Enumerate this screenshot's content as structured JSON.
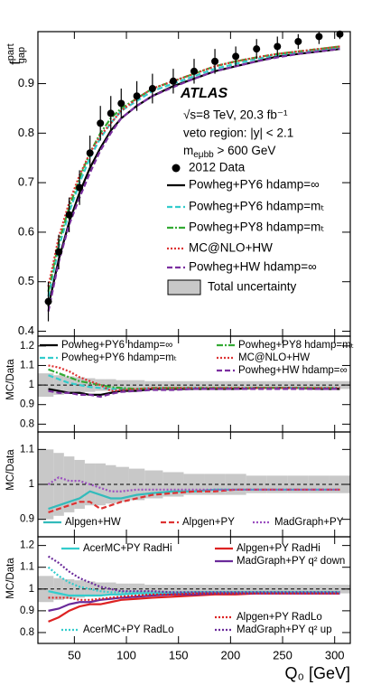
{
  "chart_data": [
    {
      "type": "line",
      "ylabel": {
        "main": "f",
        "sup": "part",
        "sub": "gap"
      },
      "x": [
        25,
        35,
        45,
        55,
        65,
        75,
        85,
        95,
        110,
        125,
        145,
        165,
        185,
        205,
        225,
        245,
        265,
        285,
        305
      ],
      "xlim": [
        15,
        315
      ],
      "xticks": [
        50,
        100,
        150,
        200,
        250,
        300
      ],
      "ylim": [
        0.39,
        1.005
      ],
      "yticks": [
        0.4,
        0.5,
        0.6,
        0.7,
        0.8,
        0.9
      ],
      "annotations": {
        "experiment": "ATLAS",
        "energy": "√s=8 TeV, 20.3 fb⁻¹",
        "region": "veto region: |y| < 2.1",
        "mass": {
          "main": "m",
          "sub": "eμbb",
          "rest": " > 600 GeV"
        }
      },
      "data": {
        "name": "2012 Data",
        "color": "#000000",
        "values": [
          0.46,
          0.56,
          0.635,
          0.69,
          0.76,
          0.82,
          0.84,
          0.86,
          0.875,
          0.89,
          0.905,
          0.925,
          0.945,
          0.955,
          0.97,
          0.975,
          0.985,
          0.995,
          1.0
        ],
        "errors": [
          0.04,
          0.035,
          0.035,
          0.035,
          0.035,
          0.035,
          0.035,
          0.03,
          0.03,
          0.03,
          0.025,
          0.025,
          0.025,
          0.02,
          0.02,
          0.02,
          0.015,
          0.015,
          0.01
        ]
      },
      "series": [
        {
          "name": "Powheg+PY6 hdamp=∞",
          "color": "#000000",
          "style": "solid",
          "values": [
            0.45,
            0.545,
            0.62,
            0.68,
            0.73,
            0.77,
            0.805,
            0.83,
            0.855,
            0.875,
            0.895,
            0.91,
            0.925,
            0.935,
            0.945,
            0.955,
            0.96,
            0.965,
            0.97
          ]
        },
        {
          "name": "Powheg+PY6 hdamp=mₜ",
          "color": "#33cccc",
          "style": "dashed",
          "values": [
            0.47,
            0.57,
            0.64,
            0.7,
            0.75,
            0.79,
            0.82,
            0.845,
            0.865,
            0.885,
            0.9,
            0.915,
            0.93,
            0.94,
            0.95,
            0.958,
            0.963,
            0.968,
            0.972
          ]
        },
        {
          "name": "Powheg+PY8 hdamp=mₜ",
          "color": "#33aa33",
          "style": "dashdot",
          "values": [
            0.48,
            0.58,
            0.65,
            0.71,
            0.76,
            0.8,
            0.83,
            0.85,
            0.87,
            0.89,
            0.905,
            0.92,
            0.935,
            0.945,
            0.953,
            0.96,
            0.965,
            0.97,
            0.975
          ]
        },
        {
          "name": "MC@NLO+HW",
          "color": "#dd3333",
          "style": "dotted",
          "values": [
            0.49,
            0.59,
            0.66,
            0.715,
            0.76,
            0.795,
            0.82,
            0.845,
            0.87,
            0.89,
            0.905,
            0.92,
            0.935,
            0.945,
            0.953,
            0.96,
            0.965,
            0.97,
            0.975
          ]
        },
        {
          "name": "Powheg+HW hdamp=∞",
          "color": "#7b2fa0",
          "style": "dashed",
          "values": [
            0.44,
            0.54,
            0.615,
            0.67,
            0.72,
            0.765,
            0.8,
            0.83,
            0.855,
            0.875,
            0.893,
            0.91,
            0.925,
            0.935,
            0.945,
            0.953,
            0.96,
            0.965,
            0.97
          ]
        }
      ],
      "band": {
        "name": "Total uncertainty",
        "color": "#c8c8c8"
      }
    },
    {
      "type": "ratio",
      "ylabel": "MC/Data",
      "x": [
        25,
        35,
        45,
        55,
        65,
        75,
        85,
        95,
        110,
        125,
        145,
        165,
        185,
        205,
        225,
        245,
        265,
        285,
        305
      ],
      "xlim": [
        15,
        315
      ],
      "xticks": [
        50,
        100,
        150,
        200,
        250,
        300
      ],
      "ylim": [
        0.76,
        1.25
      ],
      "yticks": [
        0.8,
        0.9,
        1,
        1.1,
        1.2
      ],
      "reference": 1,
      "band": {
        "color": "#c8c8c8",
        "values": [
          0.06,
          0.05,
          0.045,
          0.04,
          0.035,
          0.03,
          0.03,
          0.025,
          0.025,
          0.02,
          0.02,
          0.02,
          0.02,
          0.02,
          0.02,
          0.02,
          0.02,
          0.02,
          0.02
        ]
      },
      "series": [
        {
          "name": "Powheg+PY6 hdamp=∞",
          "color": "#000000",
          "style": "solid",
          "values": [
            0.98,
            0.97,
            0.96,
            0.96,
            0.95,
            0.95,
            0.96,
            0.97,
            0.97,
            0.98,
            0.98,
            0.98,
            0.98,
            0.98,
            0.985,
            0.985,
            0.985,
            0.98,
            0.98
          ]
        },
        {
          "name": "Powheg+PY6 hdamp=mₜ",
          "color": "#33cccc",
          "style": "dashed",
          "values": [
            1.05,
            1.03,
            1.01,
            1.0,
            0.99,
            0.985,
            0.98,
            0.98,
            0.98,
            0.985,
            0.985,
            0.985,
            0.985,
            0.985,
            0.985,
            0.985,
            0.985,
            0.985,
            0.985
          ]
        },
        {
          "name": "Powheg+PY8 hdamp=mₜ",
          "color": "#33aa33",
          "style": "dashdot",
          "values": [
            1.08,
            1.06,
            1.04,
            1.02,
            1.01,
            1.0,
            0.99,
            0.985,
            0.98,
            0.985,
            0.985,
            0.985,
            0.985,
            0.985,
            0.985,
            0.985,
            0.985,
            0.985,
            0.985
          ]
        },
        {
          "name": "MC@NLO+HW",
          "color": "#dd3333",
          "style": "dotted",
          "values": [
            1.1,
            1.09,
            1.07,
            1.04,
            1.02,
            1.0,
            0.97,
            0.975,
            0.98,
            0.985,
            0.985,
            0.985,
            0.985,
            0.985,
            0.985,
            0.985,
            0.985,
            0.985,
            0.985
          ]
        },
        {
          "name": "Powheg+HW  hdamp=∞",
          "color": "#7b2fa0",
          "style": "dashed",
          "values": [
            0.97,
            0.96,
            0.96,
            0.95,
            0.95,
            0.94,
            0.955,
            0.965,
            0.97,
            0.975,
            0.975,
            0.98,
            0.98,
            0.98,
            0.98,
            0.98,
            0.98,
            0.98,
            0.98
          ]
        }
      ]
    },
    {
      "type": "ratio",
      "ylabel": "MC/Data",
      "x": [
        25,
        35,
        45,
        55,
        65,
        75,
        85,
        95,
        110,
        125,
        145,
        165,
        185,
        205,
        225,
        245,
        265,
        285,
        305
      ],
      "xlim": [
        15,
        315
      ],
      "xticks": [
        50,
        100,
        150,
        200,
        250,
        300
      ],
      "ylim": [
        0.85,
        1.15
      ],
      "yticks": [
        0.9,
        1,
        1.1
      ],
      "reference": 1,
      "band": {
        "color": "#c8c8c8",
        "values": [
          0.1,
          0.09,
          0.08,
          0.07,
          0.06,
          0.06,
          0.055,
          0.05,
          0.045,
          0.04,
          0.035,
          0.03,
          0.03,
          0.03,
          0.025,
          0.025,
          0.025,
          0.025,
          0.025
        ]
      },
      "series": [
        {
          "name": "Alpgen+HW",
          "color": "#33bbbb",
          "style": "solid",
          "values": [
            0.93,
            0.94,
            0.95,
            0.96,
            0.98,
            0.97,
            0.96,
            0.96,
            0.97,
            0.975,
            0.98,
            0.98,
            0.985,
            0.985,
            0.985,
            0.985,
            0.985,
            0.985,
            0.985
          ]
        },
        {
          "name": "Alpgen+PY",
          "color": "#dd3333",
          "style": "dashed",
          "values": [
            0.92,
            0.93,
            0.94,
            0.95,
            0.95,
            0.93,
            0.94,
            0.95,
            0.96,
            0.97,
            0.975,
            0.98,
            0.98,
            0.985,
            0.985,
            0.985,
            0.985,
            0.985,
            0.985
          ]
        },
        {
          "name": "MadGraph+PY",
          "color": "#9b4fc0",
          "style": "dotted",
          "values": [
            1.0,
            1.02,
            1.01,
            1.01,
            1.0,
            0.99,
            0.98,
            0.98,
            0.985,
            0.985,
            0.985,
            0.985,
            0.985,
            0.985,
            0.985,
            0.985,
            0.985,
            0.985,
            0.985
          ]
        }
      ]
    },
    {
      "type": "ratio",
      "ylabel": "MC/Data",
      "xlabel": "Q₀ [GeV]",
      "x": [
        25,
        35,
        45,
        55,
        65,
        75,
        85,
        95,
        110,
        125,
        145,
        165,
        185,
        205,
        225,
        245,
        265,
        285,
        305
      ],
      "xlim": [
        15,
        315
      ],
      "xticks": [
        50,
        100,
        150,
        200,
        250,
        300
      ],
      "ylim": [
        0.75,
        1.24
      ],
      "yticks": [
        0.8,
        0.9,
        1,
        1.1,
        1.2
      ],
      "reference": 1,
      "band": {
        "color": "#c8c8c8",
        "values": [
          0.06,
          0.05,
          0.045,
          0.04,
          0.035,
          0.03,
          0.03,
          0.025,
          0.025,
          0.02,
          0.02,
          0.02,
          0.02,
          0.02,
          0.02,
          0.02,
          0.02,
          0.02,
          0.02
        ]
      },
      "series": [
        {
          "name": "AcerMC+PY RadHi",
          "color": "#33cccc",
          "style": "solid",
          "values": [
            0.99,
            0.98,
            0.97,
            0.97,
            0.97,
            0.97,
            0.975,
            0.975,
            0.98,
            0.98,
            0.98,
            0.985,
            0.985,
            0.985,
            0.985,
            0.985,
            0.985,
            0.985,
            0.985
          ]
        },
        {
          "name": "Alpgen+PY RadHi",
          "color": "#dd2222",
          "style": "solid",
          "values": [
            0.85,
            0.87,
            0.9,
            0.92,
            0.93,
            0.93,
            0.94,
            0.95,
            0.955,
            0.96,
            0.965,
            0.97,
            0.975,
            0.975,
            0.98,
            0.98,
            0.98,
            0.98,
            0.98
          ]
        },
        {
          "name": "MadGraph+PY q² down",
          "color": "#6a2a9a",
          "style": "solid",
          "values": [
            0.9,
            0.91,
            0.93,
            0.94,
            0.94,
            0.95,
            0.955,
            0.96,
            0.965,
            0.97,
            0.975,
            0.975,
            0.98,
            0.98,
            0.98,
            0.98,
            0.98,
            0.98,
            0.98
          ]
        },
        {
          "name": "AcerMC+PY RadLo",
          "color": "#33cccc",
          "style": "dotted",
          "values": [
            1.1,
            1.06,
            1.03,
            1.01,
            1.0,
            0.99,
            0.985,
            0.985,
            0.985,
            0.985,
            0.985,
            0.985,
            0.985,
            0.985,
            0.985,
            0.985,
            0.985,
            0.985,
            0.985
          ]
        },
        {
          "name": "Alpgen+PY RadLo",
          "color": "#dd2222",
          "style": "dotted",
          "values": [
            0.96,
            0.96,
            0.96,
            0.95,
            0.95,
            0.955,
            0.96,
            0.965,
            0.97,
            0.975,
            0.975,
            0.98,
            0.98,
            0.98,
            0.98,
            0.98,
            0.98,
            0.98,
            0.98
          ]
        },
        {
          "name": "MadGraph+PY q² up",
          "color": "#6a2a9a",
          "style": "dotted",
          "values": [
            1.15,
            1.12,
            1.08,
            1.05,
            1.03,
            1.01,
            1.0,
            0.99,
            0.99,
            0.99,
            0.985,
            0.985,
            0.985,
            0.985,
            0.985,
            0.985,
            0.985,
            0.985,
            0.985
          ]
        }
      ]
    }
  ]
}
